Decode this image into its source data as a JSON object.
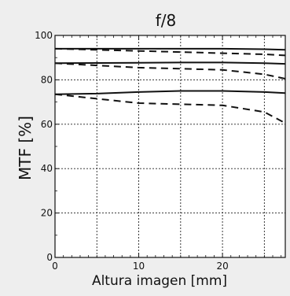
{
  "chart_data": {
    "type": "line",
    "title": "f/8",
    "xlabel": "Altura imagen [mm]",
    "ylabel": "MTF [%]",
    "xlim": [
      0,
      27.5
    ],
    "ylim": [
      0,
      100
    ],
    "x_ticks": [
      0,
      10,
      20
    ],
    "y_ticks": [
      0,
      20,
      40,
      60,
      80,
      100
    ],
    "grid": true,
    "grid_style": "dashed",
    "minor_ticks_x": [
      1,
      2,
      3,
      4,
      5,
      6,
      7,
      8,
      9,
      11,
      12,
      13,
      14,
      15,
      16,
      17,
      18,
      19,
      21,
      22,
      23,
      24,
      25,
      26,
      27
    ],
    "series": [
      {
        "style": "solid",
        "x": [
          0,
          5,
          10,
          15,
          20,
          25,
          27.5
        ],
        "y": [
          94,
          94,
          94,
          94,
          94,
          93.8,
          93.5
        ]
      },
      {
        "style": "dashed",
        "x": [
          0,
          5,
          10,
          15,
          20,
          25,
          27.5
        ],
        "y": [
          94,
          93.5,
          93,
          92.5,
          92,
          91.5,
          91
        ]
      },
      {
        "style": "solid",
        "x": [
          0,
          5,
          10,
          15,
          20,
          25,
          27.5
        ],
        "y": [
          87.5,
          87.6,
          87.7,
          87.8,
          87.8,
          87.5,
          87.2
        ]
      },
      {
        "style": "dashed",
        "x": [
          0,
          5,
          10,
          15,
          20,
          25,
          27.5
        ],
        "y": [
          87.5,
          86.5,
          85.5,
          85,
          84.5,
          82.5,
          80.5
        ]
      },
      {
        "style": "solid",
        "x": [
          0,
          5,
          10,
          15,
          20,
          25,
          27.5
        ],
        "y": [
          73.5,
          73.8,
          74.5,
          75,
          75,
          74.5,
          74
        ]
      },
      {
        "style": "dashed",
        "x": [
          0,
          5,
          10,
          15,
          20,
          25,
          27.5
        ],
        "y": [
          73.5,
          71.5,
          69.5,
          69,
          68.5,
          65.5,
          60.5
        ]
      }
    ]
  },
  "colors": {
    "background": "#eeeeee",
    "plot_background": "#ffffff",
    "line": "#111111",
    "grid": "#222222"
  }
}
